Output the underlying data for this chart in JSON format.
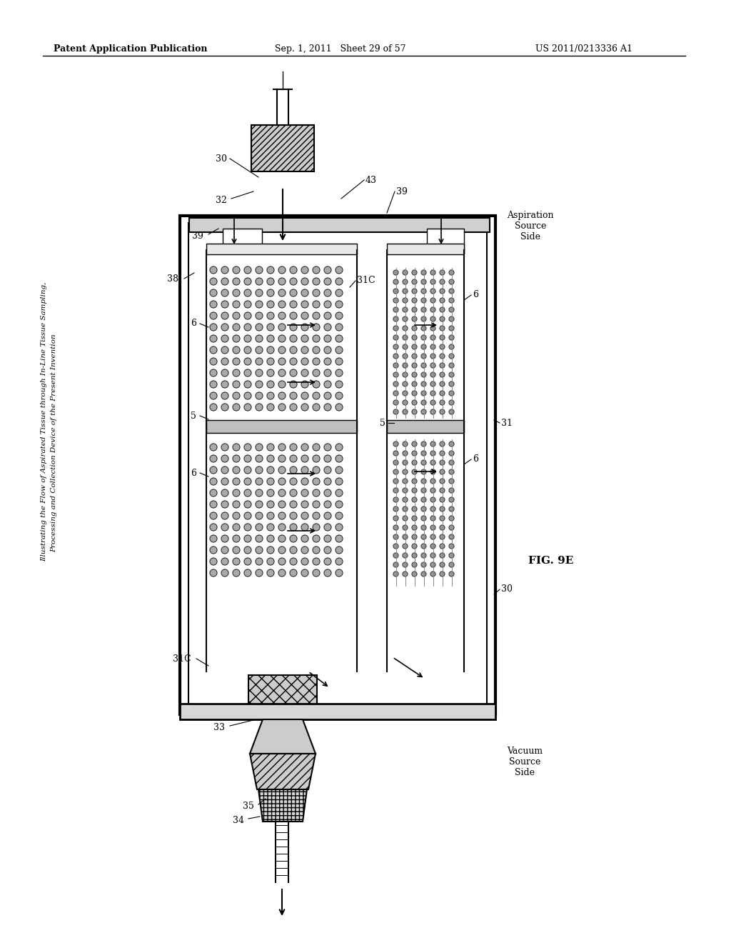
{
  "header_left": "Patent Application Publication",
  "header_mid": "Sep. 1, 2011   Sheet 29 of 57",
  "header_right": "US 2011/0213336 A1",
  "fig_label": "FIG. 9E",
  "caption_line1": "Illustrating the Flow of Aspirated Tissue through In-Line Tissue Sampling,",
  "caption_line2": "Processing and Collection Device of the Present Invention",
  "bg_color": "#ffffff",
  "line_color": "#000000",
  "labels": {
    "30_top": "30",
    "32": "32",
    "43": "43",
    "39_left": "39",
    "39_right": "39",
    "38": "38",
    "31C_top": "31C",
    "31C_bot": "31C",
    "6_tl": "6",
    "6_bl": "6",
    "6_tr": "6",
    "6_br": "6",
    "5_left": "5",
    "5_right": "5",
    "31": "31",
    "33": "33",
    "35": "35",
    "34": "34",
    "30_bot": "30",
    "aspiration_side": "Aspiration\nSource\nSide",
    "vacuum_side": "Vacuum\nSource\nSide"
  }
}
